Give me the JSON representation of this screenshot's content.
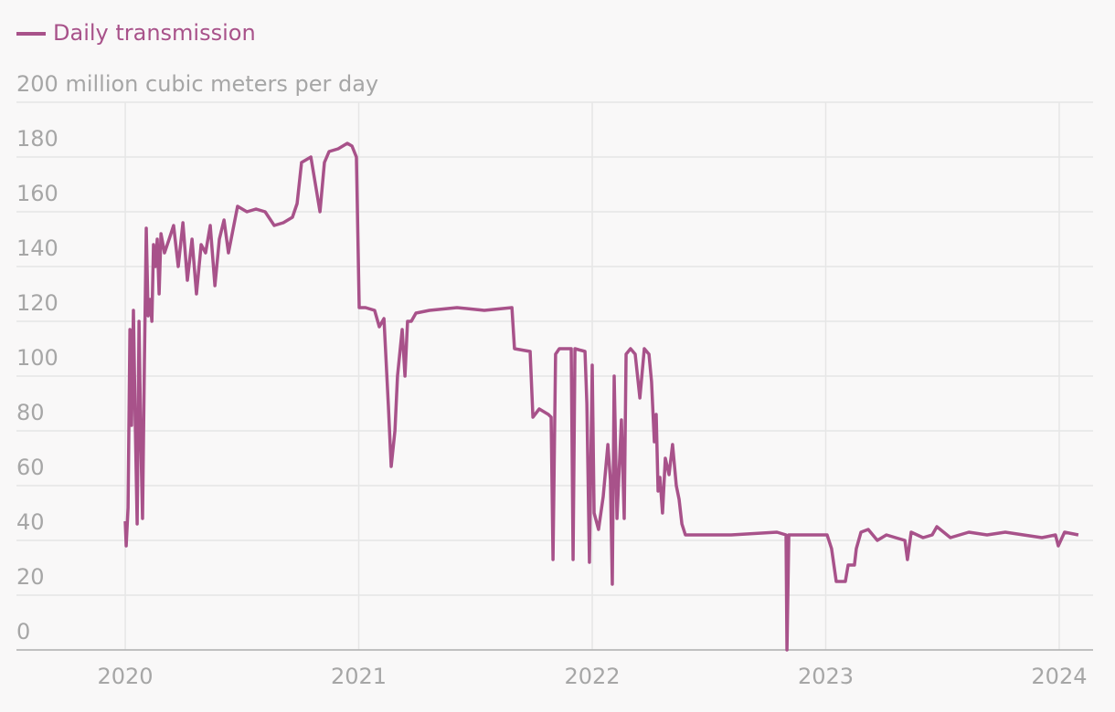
{
  "chart_data": {
    "type": "line",
    "x": [
      2020.0,
      2020.004,
      2020.012,
      2020.02,
      2020.027,
      2020.035,
      2020.043,
      2020.051,
      2020.059,
      2020.067,
      2020.074,
      2020.082,
      2020.09,
      2020.098,
      2020.106,
      2020.114,
      2020.121,
      2020.129,
      2020.137,
      2020.145,
      2020.153,
      2020.168,
      2020.188,
      2020.207,
      2020.227,
      2020.247,
      2020.266,
      2020.286,
      2020.305,
      2020.325,
      2020.344,
      2020.364,
      2020.384,
      2020.403,
      2020.423,
      2020.442,
      2020.481,
      2020.521,
      2020.56,
      2020.599,
      2020.638,
      2020.677,
      2020.716,
      2020.736,
      2020.755,
      2020.795,
      2020.834,
      2020.853,
      2020.873,
      2020.912,
      2020.951,
      2020.971,
      2020.99,
      2021.002,
      2021.029,
      2021.068,
      2021.088,
      2021.108,
      2021.127,
      2021.139,
      2021.155,
      2021.166,
      2021.186,
      2021.198,
      2021.209,
      2021.225,
      2021.245,
      2021.303,
      2021.421,
      2021.538,
      2021.656,
      2021.667,
      2021.734,
      2021.746,
      2021.773,
      2021.812,
      2021.824,
      2021.832,
      2021.843,
      2021.859,
      2021.91,
      2021.918,
      2021.926,
      2021.969,
      2021.977,
      2021.988,
      2022.0,
      2022.008,
      2022.027,
      2022.047,
      2022.067,
      2022.078,
      2022.086,
      2022.094,
      2022.106,
      2022.125,
      2022.137,
      2022.145,
      2022.164,
      2022.184,
      2022.204,
      2022.223,
      2022.243,
      2022.254,
      2022.266,
      2022.274,
      2022.282,
      2022.29,
      2022.301,
      2022.313,
      2022.329,
      2022.344,
      2022.36,
      2022.372,
      2022.384,
      2022.399,
      2022.595,
      2022.791,
      2022.83,
      2022.834,
      2022.842,
      2022.986,
      2023.006,
      2023.025,
      2023.045,
      2023.084,
      2023.096,
      2023.123,
      2023.131,
      2023.151,
      2023.182,
      2023.221,
      2023.26,
      2023.299,
      2023.339,
      2023.35,
      2023.366,
      2023.417,
      2023.456,
      2023.476,
      2023.534,
      2023.613,
      2023.691,
      2023.769,
      2023.847,
      2023.926,
      2023.984,
      2023.996,
      2024.023,
      2024.082
    ],
    "series": [
      {
        "name": "Daily transmission",
        "color": "#a8528a",
        "values": [
          47,
          38,
          52,
          117,
          82,
          124,
          82,
          46,
          120,
          75,
          48,
          105,
          154,
          122,
          128,
          120,
          148,
          140,
          150,
          130,
          152,
          145,
          150,
          155,
          140,
          156,
          135,
          150,
          130,
          148,
          145,
          155,
          133,
          150,
          157,
          145,
          162,
          160,
          161,
          160,
          155,
          156,
          158,
          163,
          178,
          180,
          160,
          178,
          182,
          183,
          185,
          184,
          180,
          125,
          125,
          124,
          118,
          121,
          89,
          67,
          80,
          100,
          117,
          100,
          120,
          120,
          123,
          124,
          125,
          124,
          125,
          110,
          109,
          85,
          88,
          86,
          85,
          33,
          108,
          110,
          110,
          33,
          110,
          109,
          90,
          32,
          104,
          50,
          44,
          56,
          75,
          62,
          24,
          100,
          48,
          84,
          48,
          108,
          110,
          108,
          92,
          110,
          108,
          98,
          76,
          86,
          58,
          63,
          50,
          70,
          64,
          75,
          60,
          55,
          46,
          42,
          42,
          43,
          42,
          0,
          42,
          42,
          42,
          37,
          25,
          25,
          31,
          31,
          37,
          43,
          44,
          40,
          42,
          41,
          40,
          33,
          43,
          41,
          42,
          45,
          41,
          43,
          42,
          43,
          42,
          41,
          42,
          38,
          43,
          42
        ]
      }
    ],
    "xlim": [
      2019.534,
      2024.145
    ],
    "xticks": [
      2020,
      2021,
      2022,
      2023,
      2024
    ],
    "ylim": [
      0,
      200
    ],
    "yticks": [
      0,
      20,
      40,
      60,
      80,
      100,
      120,
      140,
      160,
      180,
      {
        "value": 200,
        "label": "200 million cubic meters per day"
      }
    ],
    "grid": true
  }
}
